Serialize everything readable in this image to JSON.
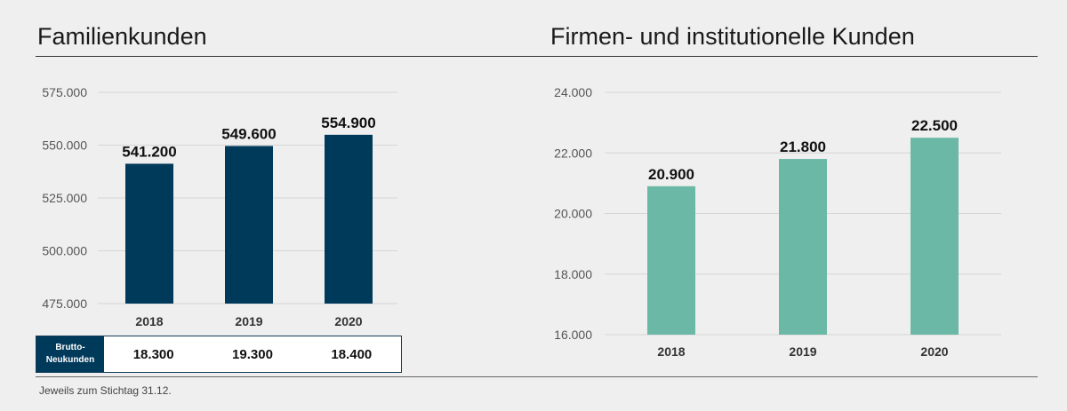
{
  "chart_data": [
    {
      "type": "bar",
      "title": "Familienkunden",
      "categories": [
        "2018",
        "2019",
        "2020"
      ],
      "values": [
        541200,
        549600,
        554900
      ],
      "value_labels": [
        "541.200",
        "549.600",
        "554.900"
      ],
      "yticks": [
        "475.000",
        "500.000",
        "525.000",
        "550.000",
        "575.000"
      ],
      "ytick_values": [
        475000,
        500000,
        525000,
        550000,
        575000
      ],
      "ylim": [
        475000,
        575000
      ],
      "grid": true,
      "color": "#003a5b",
      "table": {
        "row_label": "Brutto-\nNeukunden",
        "values": [
          "18.300",
          "19.300",
          "18.400"
        ]
      }
    },
    {
      "type": "bar",
      "title": "Firmen- und institutionelle Kunden",
      "categories": [
        "2018",
        "2019",
        "2020"
      ],
      "values": [
        20900,
        21800,
        22500
      ],
      "value_labels": [
        "20.900",
        "21.800",
        "22.500"
      ],
      "yticks": [
        "16.000",
        "18.000",
        "20.000",
        "22.000",
        "24.000"
      ],
      "ytick_values": [
        16000,
        18000,
        20000,
        22000,
        24000
      ],
      "ylim": [
        16000,
        24000
      ],
      "grid": true,
      "color": "#6bb8a6"
    }
  ],
  "footnote": "Jeweils zum Stichtag 31.12."
}
